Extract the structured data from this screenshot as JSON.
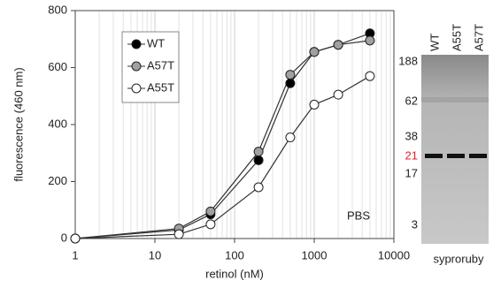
{
  "chart_data": {
    "type": "line",
    "xlabel": "retinol (nM)",
    "ylabel": "fluorescence (460 nm)",
    "x": [
      1,
      20,
      50,
      200,
      500,
      1000,
      2000,
      5000
    ],
    "series": [
      {
        "name": "WT",
        "color": "#000000",
        "values": [
          0,
          30,
          85,
          275,
          545,
          655,
          680,
          720
        ]
      },
      {
        "name": "A57T",
        "color": "#a0a0a0",
        "values": [
          0,
          35,
          95,
          305,
          575,
          655,
          680,
          695
        ]
      },
      {
        "name": "A55T",
        "color": "#ffffff",
        "values": [
          0,
          15,
          50,
          180,
          355,
          470,
          505,
          570
        ]
      }
    ],
    "xlim": [
      1,
      10000
    ],
    "xticks": [
      1,
      10,
      100,
      1000,
      10000
    ],
    "xscale": "log",
    "ylim": [
      0,
      800
    ],
    "yticks": [
      0,
      200,
      400,
      600,
      800
    ],
    "grid": true,
    "legend": "upper left",
    "annotation": "PBS"
  },
  "gel": {
    "lanes": [
      "WT",
      "A55T",
      "A57T"
    ],
    "markers": [
      "188",
      "62",
      "38",
      "21",
      "17",
      "3"
    ],
    "caption": "syproruby"
  }
}
